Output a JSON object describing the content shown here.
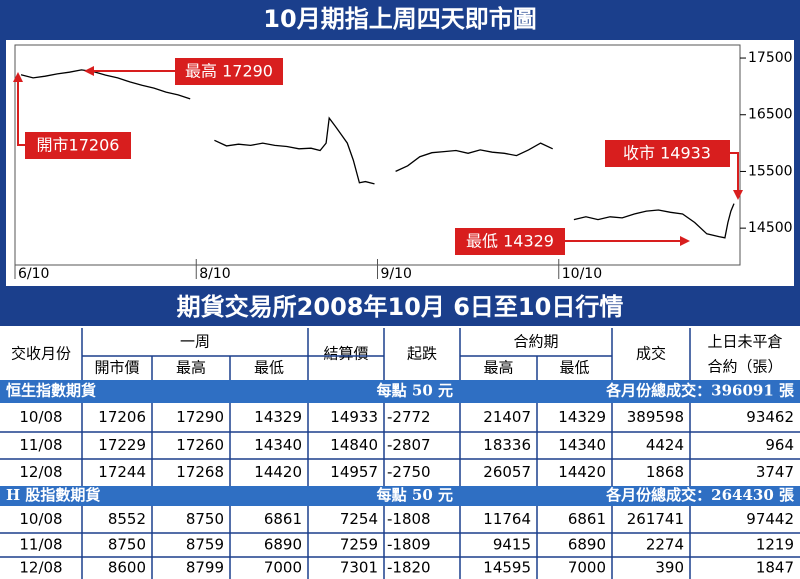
{
  "chart_data": {
    "type": "line",
    "title": "10月期指上周四天即市圖",
    "x": [
      2,
      6,
      10,
      14,
      18,
      22,
      26,
      30,
      34,
      38,
      42,
      46,
      50,
      54,
      58,
      62,
      66,
      70,
      74,
      78,
      82,
      86,
      90,
      94,
      98,
      101,
      103,
      104,
      106,
      108,
      110,
      112,
      114,
      116,
      119,
      122,
      126,
      130,
      134,
      138,
      142,
      146,
      150,
      154,
      158,
      162,
      166,
      170,
      174,
      178,
      182,
      185,
      189,
      193,
      197,
      201,
      205,
      209,
      213,
      217,
      221,
      225,
      229,
      233,
      235,
      236,
      237,
      238
    ],
    "series": [
      {
        "name": null,
        "color": "#000000",
        "values": [
          17206,
          17150,
          17180,
          17220,
          17250,
          17290,
          17260,
          17200,
          17150,
          17080,
          17020,
          16970,
          16900,
          16850,
          16780,
          null,
          16050,
          15950,
          15980,
          15960,
          16000,
          15960,
          15940,
          15900,
          15910,
          15870,
          16000,
          16440,
          16300,
          16150,
          16000,
          15700,
          15300,
          15320,
          15280,
          null,
          15500,
          15600,
          15760,
          15830,
          15850,
          15870,
          15820,
          15880,
          15840,
          15820,
          15780,
          15880,
          16000,
          15900,
          null,
          14650,
          14700,
          14650,
          14700,
          14680,
          14750,
          14800,
          14820,
          14780,
          14750,
          14600,
          14400,
          14350,
          14329,
          14600,
          14800,
          14933
        ]
      }
    ],
    "xlim": [
      0,
      240
    ],
    "xticks": [
      {
        "value": 0,
        "label": "6/10"
      },
      {
        "value": 60,
        "label": "8/10"
      },
      {
        "value": 120,
        "label": "9/10"
      },
      {
        "value": 180,
        "label": "10/10"
      }
    ],
    "ylim": [
      13850,
      17730
    ],
    "yticks": [
      17500,
      16500,
      15500,
      14500
    ],
    "annotations": [
      "最高 17290",
      "開市17206",
      "收市 14933",
      "最低 14329"
    ]
  },
  "table": {
    "title": "期貨交易所2008年10月 6日至10日行情",
    "header1": [
      "交收月份",
      "一周",
      "結算價",
      "起跌",
      "合約期",
      "成交",
      "上日未平倉",
      "合約（張）"
    ],
    "header2": [
      "開市價",
      "最高",
      "最低",
      "最高",
      "最低"
    ],
    "sections": [
      {
        "name": "恒生指數期貨",
        "point": "每點 50 元",
        "total": "各月份總成交：396091 張",
        "rows": [
          [
            "10/08",
            "17206",
            "17290",
            "14329",
            "14933",
            "-2772",
            "21407",
            "14329",
            "389598",
            "93462"
          ],
          [
            "11/08",
            "17229",
            "17260",
            "14340",
            "14840",
            "-2807",
            "18336",
            "14340",
            "4424",
            "964"
          ],
          [
            "12/08",
            "17244",
            "17268",
            "14420",
            "14957",
            "-2750",
            "26057",
            "14420",
            "1868",
            "3747"
          ]
        ]
      },
      {
        "name": "H 股指數期貨",
        "point": "每點 50 元",
        "total": "各月份總成交：264430 張",
        "rows": [
          [
            "10/08",
            "8552",
            "8750",
            "6861",
            "7254",
            "-1808",
            "11764",
            "6861",
            "261741",
            "97442"
          ],
          [
            "11/08",
            "8750",
            "8759",
            "6890",
            "7259",
            "-1809",
            "9415",
            "6890",
            "2274",
            "1219"
          ],
          [
            "12/08",
            "8600",
            "8799",
            "7000",
            "7301",
            "-1820",
            "14595",
            "7000",
            "390",
            "1847"
          ]
        ]
      }
    ]
  }
}
